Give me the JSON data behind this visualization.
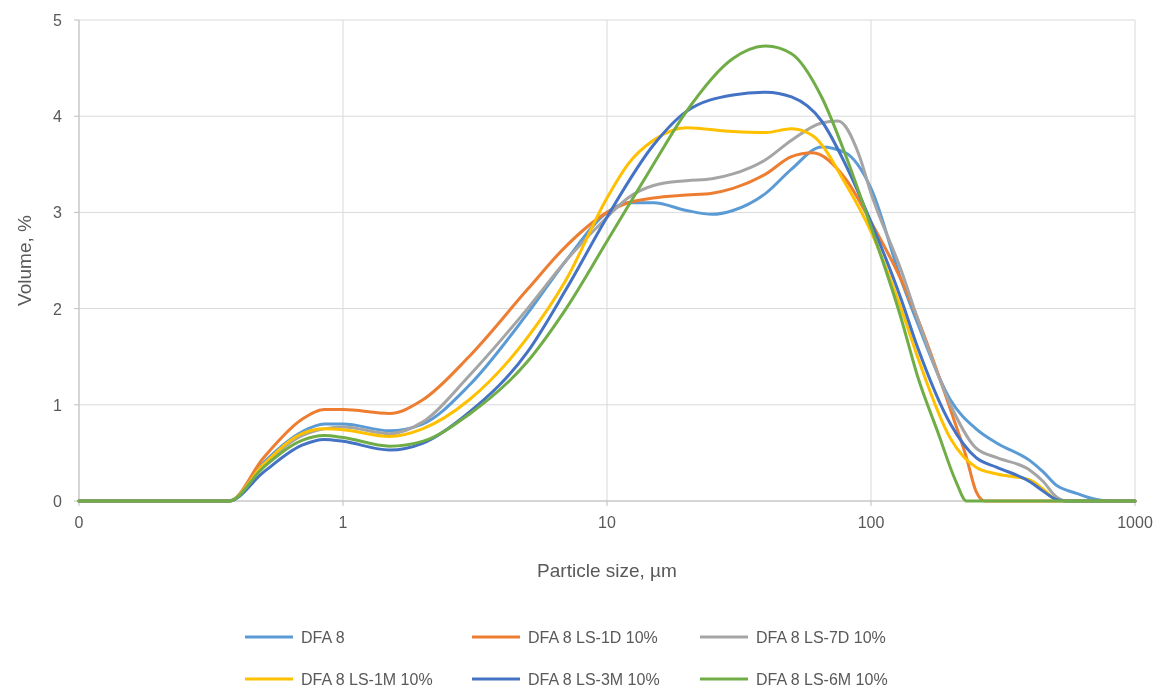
{
  "chart_data": {
    "type": "line",
    "xlabel": "Particle size, µm",
    "ylabel": "Volume, %",
    "log": "x",
    "xlim": [
      0.1,
      1000
    ],
    "xticks": [
      {
        "value": 0.1,
        "label": "0"
      },
      1,
      10,
      100,
      1000
    ],
    "ylim": [
      0,
      5
    ],
    "yticks": [
      0,
      1,
      2,
      3,
      4,
      5
    ],
    "grid": true,
    "legend": "bottom",
    "line_style": "solid",
    "marker": "none",
    "series": [
      {
        "name": "DFA 8",
        "color": "#5b9bd5",
        "x": [
          0.1,
          0.37,
          0.5,
          0.7,
          0.85,
          1,
          1.5,
          2,
          3,
          5,
          7,
          10,
          12,
          15,
          20,
          25,
          30,
          40,
          50,
          65,
          80,
          100,
          130,
          150,
          200,
          250,
          300,
          400,
          450,
          500,
          600,
          700,
          800,
          1000
        ],
        "values": [
          0,
          0,
          0.4,
          0.72,
          0.8,
          0.8,
          0.73,
          0.8,
          1.2,
          1.95,
          2.5,
          3.0,
          3.1,
          3.1,
          3.02,
          2.98,
          3.02,
          3.2,
          3.45,
          3.68,
          3.62,
          3.25,
          2.3,
          1.85,
          1.05,
          0.75,
          0.6,
          0.42,
          0.3,
          0.17,
          0.08,
          0.02,
          0,
          0
        ]
      },
      {
        "name": "DFA 8 LS-1D 10%",
        "color": "#ed7d31",
        "x": [
          0.1,
          0.37,
          0.5,
          0.7,
          0.85,
          1,
          1.5,
          2,
          3,
          5,
          7,
          10,
          12,
          15,
          20,
          25,
          30,
          40,
          50,
          60,
          80,
          100,
          130,
          150,
          200,
          230,
          250,
          270,
          1000
        ],
        "values": [
          0,
          0,
          0.45,
          0.85,
          0.95,
          0.95,
          0.91,
          1.05,
          1.5,
          2.2,
          2.65,
          3.0,
          3.1,
          3.15,
          3.18,
          3.2,
          3.25,
          3.4,
          3.58,
          3.62,
          3.35,
          2.9,
          2.3,
          1.9,
          0.95,
          0.45,
          0.1,
          0,
          0
        ]
      },
      {
        "name": "DFA 8 LS-7D 10%",
        "color": "#a5a5a5",
        "x": [
          0.1,
          0.37,
          0.5,
          0.7,
          0.85,
          1,
          1.5,
          2,
          3,
          5,
          7,
          10,
          12,
          15,
          20,
          25,
          30,
          40,
          50,
          65,
          75,
          90,
          100,
          130,
          150,
          200,
          250,
          300,
          400,
          450,
          500,
          550,
          1000
        ],
        "values": [
          0,
          0,
          0.38,
          0.68,
          0.75,
          0.77,
          0.7,
          0.82,
          1.3,
          2.0,
          2.5,
          2.95,
          3.15,
          3.28,
          3.33,
          3.35,
          3.4,
          3.55,
          3.75,
          3.93,
          3.95,
          3.6,
          3.2,
          2.4,
          1.9,
          1.0,
          0.55,
          0.45,
          0.32,
          0.2,
          0.05,
          0,
          0
        ]
      },
      {
        "name": "DFA 8 LS-1M 10%",
        "color": "#ffc000",
        "x": [
          0.1,
          0.37,
          0.5,
          0.7,
          0.85,
          1,
          1.5,
          2,
          3,
          5,
          7,
          10,
          12,
          15,
          20,
          30,
          40,
          50,
          60,
          80,
          100,
          130,
          150,
          200,
          250,
          300,
          400,
          450,
          500,
          550,
          1000
        ],
        "values": [
          0,
          0,
          0.38,
          0.7,
          0.75,
          0.74,
          0.67,
          0.75,
          1.05,
          1.7,
          2.3,
          3.15,
          3.5,
          3.75,
          3.88,
          3.84,
          3.83,
          3.87,
          3.8,
          3.3,
          2.8,
          2.0,
          1.5,
          0.65,
          0.35,
          0.28,
          0.22,
          0.12,
          0.02,
          0,
          0
        ]
      },
      {
        "name": "DFA 8 LS-3M 10%",
        "color": "#4472c4",
        "x": [
          0.1,
          0.37,
          0.5,
          0.7,
          0.85,
          1,
          1.5,
          2,
          3,
          5,
          7,
          10,
          15,
          20,
          30,
          40,
          50,
          65,
          80,
          100,
          130,
          150,
          200,
          250,
          300,
          400,
          450,
          500,
          550,
          1000
        ],
        "values": [
          0,
          0,
          0.3,
          0.58,
          0.64,
          0.62,
          0.53,
          0.6,
          0.92,
          1.55,
          2.2,
          2.95,
          3.7,
          4.05,
          4.22,
          4.25,
          4.2,
          3.95,
          3.5,
          2.9,
          2.1,
          1.6,
          0.8,
          0.45,
          0.35,
          0.2,
          0.1,
          0.02,
          0,
          0
        ]
      },
      {
        "name": "DFA 8 LS-6M 10%",
        "color": "#70ad47",
        "x": [
          0.1,
          0.37,
          0.5,
          0.7,
          0.85,
          1,
          1.5,
          2,
          3,
          5,
          7,
          10,
          15,
          20,
          30,
          40,
          50,
          65,
          80,
          100,
          130,
          150,
          180,
          210,
          230,
          1000
        ],
        "values": [
          0,
          0,
          0.35,
          0.63,
          0.68,
          0.66,
          0.57,
          0.62,
          0.9,
          1.45,
          2.0,
          2.7,
          3.5,
          4.05,
          4.6,
          4.73,
          4.65,
          4.2,
          3.6,
          2.85,
          1.9,
          1.3,
          0.7,
          0.2,
          0,
          0
        ]
      }
    ]
  }
}
